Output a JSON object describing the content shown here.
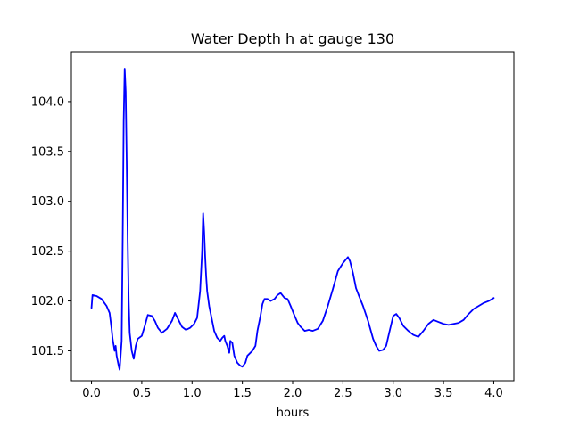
{
  "chart_data": {
    "type": "line",
    "title": "Water Depth h at gauge 130",
    "xlabel": "hours",
    "ylabel": "",
    "xlim": [
      -0.2,
      4.2
    ],
    "ylim": [
      101.2,
      104.5
    ],
    "xticks": [
      0.0,
      0.5,
      1.0,
      1.5,
      2.0,
      2.5,
      3.0,
      3.5,
      4.0
    ],
    "xtick_labels": [
      "0.0",
      "0.5",
      "1.0",
      "1.5",
      "2.0",
      "2.5",
      "3.0",
      "3.5",
      "4.0"
    ],
    "yticks": [
      101.5,
      102.0,
      102.5,
      103.0,
      103.5,
      104.0
    ],
    "ytick_labels": [
      "101.5",
      "102.0",
      "102.5",
      "103.0",
      "103.5",
      "104.0"
    ],
    "grid": false,
    "series": [
      {
        "color": "#0000ff",
        "x": [
          0.0,
          0.01,
          0.05,
          0.1,
          0.15,
          0.18,
          0.2,
          0.21,
          0.23,
          0.24,
          0.25,
          0.27,
          0.28,
          0.3,
          0.31,
          0.32,
          0.33,
          0.34,
          0.35,
          0.36,
          0.37,
          0.38,
          0.4,
          0.42,
          0.44,
          0.46,
          0.5,
          0.53,
          0.56,
          0.6,
          0.63,
          0.66,
          0.7,
          0.75,
          0.8,
          0.83,
          0.86,
          0.9,
          0.94,
          0.98,
          1.02,
          1.05,
          1.08,
          1.1,
          1.11,
          1.12,
          1.13,
          1.14,
          1.15,
          1.17,
          1.2,
          1.22,
          1.25,
          1.28,
          1.3,
          1.32,
          1.33,
          1.35,
          1.37,
          1.38,
          1.4,
          1.42,
          1.45,
          1.48,
          1.5,
          1.53,
          1.55,
          1.58,
          1.6,
          1.63,
          1.65,
          1.68,
          1.7,
          1.72,
          1.75,
          1.78,
          1.82,
          1.85,
          1.88,
          1.92,
          1.95,
          1.98,
          2.02,
          2.05,
          2.08,
          2.12,
          2.16,
          2.2,
          2.25,
          2.3,
          2.35,
          2.4,
          2.45,
          2.5,
          2.55,
          2.57,
          2.6,
          2.63,
          2.66,
          2.7,
          2.75,
          2.8,
          2.83,
          2.86,
          2.9,
          2.93,
          2.96,
          3.0,
          3.03,
          3.06,
          3.1,
          3.15,
          3.2,
          3.25,
          3.3,
          3.35,
          3.4,
          3.45,
          3.5,
          3.55,
          3.6,
          3.65,
          3.7,
          3.75,
          3.8,
          3.85,
          3.9,
          3.95,
          4.0
        ],
        "y": [
          101.93,
          102.06,
          102.05,
          102.02,
          101.95,
          101.88,
          101.72,
          101.62,
          101.5,
          101.55,
          101.45,
          101.35,
          101.31,
          101.6,
          102.6,
          103.8,
          104.33,
          104.1,
          103.4,
          102.6,
          102.0,
          101.68,
          101.5,
          101.42,
          101.55,
          101.62,
          101.65,
          101.75,
          101.86,
          101.85,
          101.8,
          101.73,
          101.68,
          101.72,
          101.8,
          101.88,
          101.82,
          101.74,
          101.71,
          101.73,
          101.77,
          101.83,
          102.1,
          102.5,
          102.88,
          102.7,
          102.45,
          102.25,
          102.1,
          101.95,
          101.8,
          101.7,
          101.63,
          101.6,
          101.63,
          101.65,
          101.6,
          101.55,
          101.48,
          101.6,
          101.58,
          101.45,
          101.38,
          101.35,
          101.34,
          101.38,
          101.45,
          101.48,
          101.5,
          101.55,
          101.7,
          101.85,
          101.97,
          102.02,
          102.02,
          102.0,
          102.02,
          102.06,
          102.08,
          102.03,
          102.02,
          101.95,
          101.85,
          101.78,
          101.74,
          101.7,
          101.71,
          101.7,
          101.72,
          101.8,
          101.95,
          102.12,
          102.3,
          102.38,
          102.44,
          102.4,
          102.28,
          102.13,
          102.05,
          101.95,
          101.8,
          101.62,
          101.55,
          101.5,
          101.51,
          101.55,
          101.68,
          101.85,
          101.87,
          101.83,
          101.75,
          101.7,
          101.66,
          101.64,
          101.7,
          101.77,
          101.81,
          101.79,
          101.77,
          101.76,
          101.77,
          101.78,
          101.81,
          101.87,
          101.92,
          101.95,
          101.98,
          102.0,
          102.03
        ]
      }
    ]
  }
}
